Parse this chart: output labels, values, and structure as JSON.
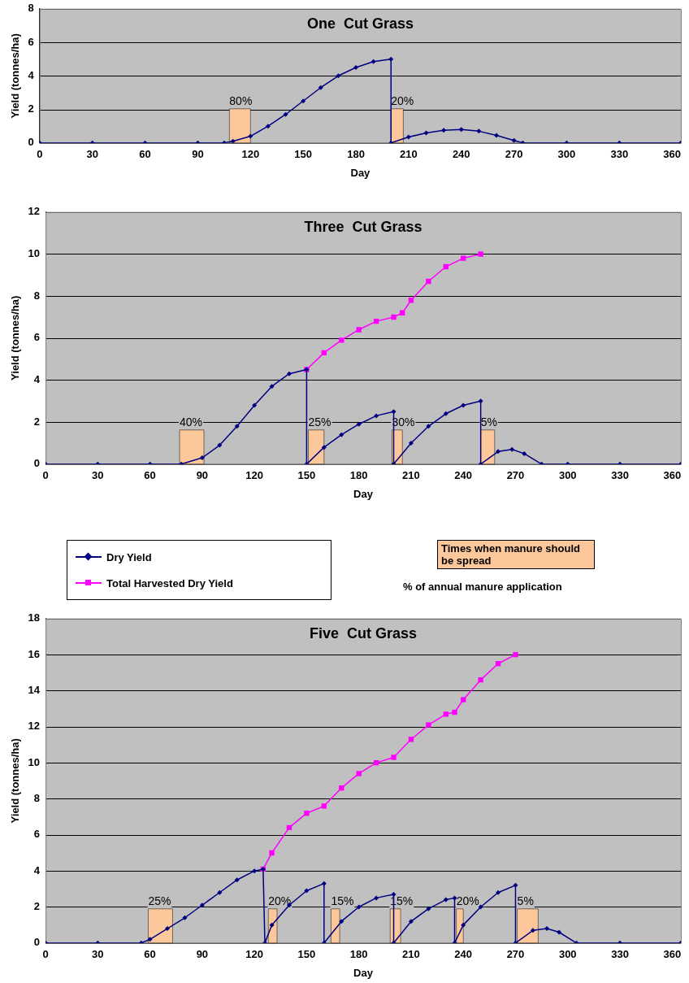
{
  "chart_data": [
    {
      "type": "line",
      "title": "One  Cut Grass",
      "xlabel": "Day",
      "ylabel": "Yield (tonnes/ha)",
      "xlim": [
        0,
        365
      ],
      "xticks": [
        0,
        30,
        60,
        90,
        120,
        150,
        180,
        210,
        240,
        270,
        300,
        330,
        360
      ],
      "ylim": [
        0,
        8
      ],
      "yticks": [
        0,
        2,
        4,
        6,
        8
      ],
      "grid": "y",
      "legend": false,
      "series": [
        {
          "color": "#000080",
          "marker": "diamond",
          "x": [
            0,
            30,
            60,
            90,
            105,
            110,
            120,
            130,
            140,
            150,
            160,
            170,
            180,
            190,
            200,
            200,
            210,
            220,
            230,
            240,
            250,
            260,
            270,
            275,
            300,
            330,
            365
          ],
          "values": [
            0,
            0,
            0,
            0,
            0,
            0.1,
            0.4,
            1.0,
            1.7,
            2.5,
            3.3,
            4.0,
            4.5,
            4.85,
            5.0,
            0,
            0.35,
            0.6,
            0.75,
            0.8,
            0.7,
            0.45,
            0.15,
            0,
            0,
            0,
            0
          ]
        }
      ],
      "bands": [
        {
          "axis": "x",
          "from": 108,
          "to": 120,
          "label": "80%",
          "color": "#fcc89b"
        },
        {
          "axis": "x",
          "from": 200,
          "to": 207,
          "label": "20%",
          "color": "#fcc89b"
        }
      ]
    },
    {
      "type": "line",
      "title": "Three  Cut Grass",
      "xlabel": "Day",
      "ylabel": "Yield (tonnes/ha)",
      "xlim": [
        0,
        365
      ],
      "xticks": [
        0,
        30,
        60,
        90,
        120,
        150,
        180,
        210,
        240,
        270,
        300,
        330,
        360
      ],
      "ylim": [
        0,
        12
      ],
      "yticks": [
        0,
        2,
        4,
        6,
        8,
        10,
        12
      ],
      "grid": "y",
      "legend": false,
      "series": [
        {
          "color": "#000080",
          "marker": "diamond",
          "x": [
            0,
            30,
            60,
            78,
            90,
            100,
            110,
            120,
            130,
            140,
            150,
            150,
            160,
            170,
            180,
            190,
            200,
            200,
            210,
            220,
            230,
            240,
            250,
            250,
            260,
            268,
            275,
            285,
            300,
            330,
            365
          ],
          "values": [
            0,
            0,
            0,
            0,
            0.3,
            0.9,
            1.8,
            2.8,
            3.7,
            4.3,
            4.5,
            0,
            0.8,
            1.4,
            1.9,
            2.3,
            2.5,
            0,
            1.0,
            1.8,
            2.4,
            2.8,
            3.0,
            0,
            0.6,
            0.7,
            0.5,
            0,
            0,
            0,
            0
          ]
        },
        {
          "color": "#ff00ff",
          "marker": "square",
          "x": [
            150,
            160,
            170,
            180,
            190,
            200,
            205,
            210,
            220,
            230,
            240,
            250
          ],
          "values": [
            4.5,
            5.3,
            5.9,
            6.4,
            6.8,
            7.0,
            7.2,
            7.8,
            8.7,
            9.4,
            9.8,
            10.0
          ]
        }
      ],
      "bands": [
        {
          "axis": "x",
          "from": 77,
          "to": 91,
          "label": "40%",
          "color": "#fcc89b"
        },
        {
          "axis": "x",
          "from": 151,
          "to": 160,
          "label": "25%",
          "color": "#fcc89b"
        },
        {
          "axis": "x",
          "from": 199,
          "to": 205,
          "label": "30%",
          "color": "#fcc89b"
        },
        {
          "axis": "x",
          "from": 250,
          "to": 258,
          "label": "5%",
          "color": "#fcc89b"
        }
      ]
    },
    {
      "type": "line",
      "title": "Five  Cut Grass",
      "xlabel": "Day",
      "ylabel": "Yield (tonnes/ha)",
      "xlim": [
        0,
        365
      ],
      "xticks": [
        0,
        30,
        60,
        90,
        120,
        150,
        180,
        210,
        240,
        270,
        300,
        330,
        360
      ],
      "ylim": [
        0,
        18
      ],
      "yticks": [
        0,
        2,
        4,
        6,
        8,
        10,
        12,
        14,
        16,
        18
      ],
      "grid": "y",
      "legend": "top left",
      "annotations": [
        "Times when manure should be spread",
        "% of annual manure application"
      ],
      "series": [
        {
          "name": "Dry Yield",
          "color": "#000080",
          "marker": "diamond",
          "x": [
            0,
            30,
            55,
            60,
            70,
            80,
            90,
            100,
            110,
            120,
            125,
            126,
            130,
            140,
            150,
            160,
            160,
            170,
            180,
            190,
            200,
            200,
            210,
            220,
            230,
            235,
            235,
            240,
            250,
            260,
            270,
            270,
            280,
            288,
            295,
            305,
            330,
            365
          ],
          "values": [
            0,
            0,
            0,
            0.2,
            0.8,
            1.4,
            2.1,
            2.8,
            3.5,
            4.0,
            4.1,
            0,
            1.0,
            2.1,
            2.9,
            3.3,
            0,
            1.2,
            2.0,
            2.5,
            2.7,
            0,
            1.2,
            1.9,
            2.4,
            2.5,
            0,
            1.0,
            2.0,
            2.8,
            3.2,
            0,
            0.7,
            0.8,
            0.6,
            0,
            0,
            0
          ]
        },
        {
          "name": "Total Harvested Dry Yield",
          "color": "#ff00ff",
          "marker": "square",
          "x": [
            125,
            130,
            140,
            150,
            160,
            170,
            180,
            190,
            200,
            210,
            220,
            230,
            235,
            240,
            250,
            260,
            270
          ],
          "values": [
            4.1,
            5.0,
            6.4,
            7.2,
            7.6,
            8.6,
            9.4,
            10.0,
            10.3,
            11.3,
            12.1,
            12.7,
            12.8,
            13.5,
            14.6,
            15.5,
            16.0
          ]
        }
      ],
      "bands": [
        {
          "axis": "x",
          "from": 59,
          "to": 73,
          "label": "25%",
          "color": "#fcc89b"
        },
        {
          "axis": "x",
          "from": 128,
          "to": 133,
          "label": "20%",
          "color": "#fcc89b"
        },
        {
          "axis": "x",
          "from": 164,
          "to": 169,
          "label": "15%",
          "color": "#fcc89b"
        },
        {
          "axis": "x",
          "from": 198,
          "to": 204,
          "label": "15%",
          "color": "#fcc89b"
        },
        {
          "axis": "x",
          "from": 236,
          "to": 240,
          "label": "20%",
          "color": "#fcc89b"
        },
        {
          "axis": "x",
          "from": 271,
          "to": 283,
          "label": "5%",
          "color": "#fcc89b"
        }
      ]
    }
  ]
}
